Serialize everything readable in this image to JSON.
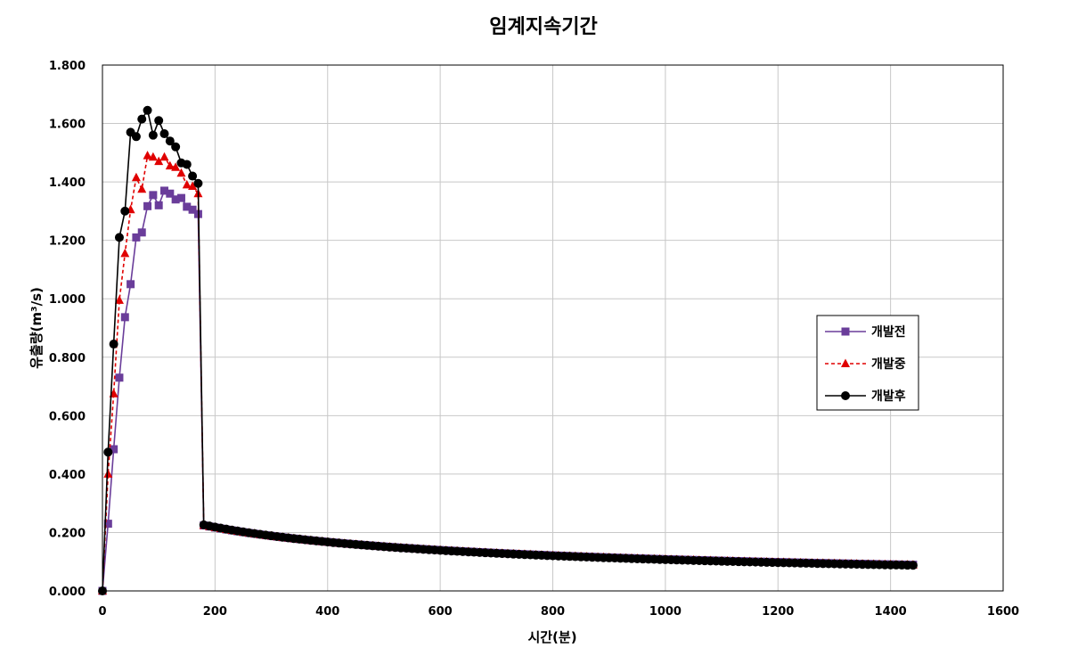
{
  "chart_data": {
    "type": "line",
    "title": "임계지속기간",
    "xlabel": "시간(분)",
    "ylabel": "유출량(m³/s)",
    "xlim": [
      0,
      1600
    ],
    "ylim": [
      0,
      1.8
    ],
    "x_ticks": [
      "0",
      "200",
      "400",
      "600",
      "800",
      "1000",
      "1200",
      "1400",
      "1600"
    ],
    "y_ticks": [
      "0.000",
      "0.200",
      "0.400",
      "0.600",
      "0.800",
      "1.000",
      "1.200",
      "1.400",
      "1.600",
      "1.800"
    ],
    "grid": true,
    "legend_position": "right",
    "x_step": 10,
    "x_end": 1440,
    "series": [
      {
        "name": "개발전",
        "color": "#6a3d9a",
        "marker": "square",
        "line": "solid",
        "early_values": [
          0.0,
          0.23,
          0.485,
          0.73,
          0.937,
          1.05,
          1.21,
          1.227,
          1.317,
          1.355,
          1.32,
          1.37,
          1.36,
          1.34,
          1.345,
          1.315,
          1.305,
          1.29
        ],
        "decay": {
          "b": 8.13,
          "c": 180,
          "n": 0.61
        }
      },
      {
        "name": "개발중",
        "color": "#e00000",
        "marker": "triangle",
        "line": "dashed",
        "early_values": [
          0.0,
          0.4,
          0.675,
          0.995,
          1.155,
          1.305,
          1.415,
          1.375,
          1.49,
          1.485,
          1.47,
          1.485,
          1.455,
          1.45,
          1.43,
          1.39,
          1.385,
          1.36
        ],
        "decay": {
          "b": 8.39,
          "c": 180,
          "n": 0.615
        }
      },
      {
        "name": "개발후",
        "color": "#000000",
        "marker": "circle",
        "line": "solid",
        "early_values": [
          0.0,
          0.475,
          0.845,
          1.21,
          1.3,
          1.57,
          1.555,
          1.615,
          1.645,
          1.56,
          1.61,
          1.565,
          1.54,
          1.52,
          1.465,
          1.46,
          1.42,
          1.395
        ],
        "decay": {
          "b": 9.22,
          "c": 180,
          "n": 0.63
        }
      }
    ]
  }
}
